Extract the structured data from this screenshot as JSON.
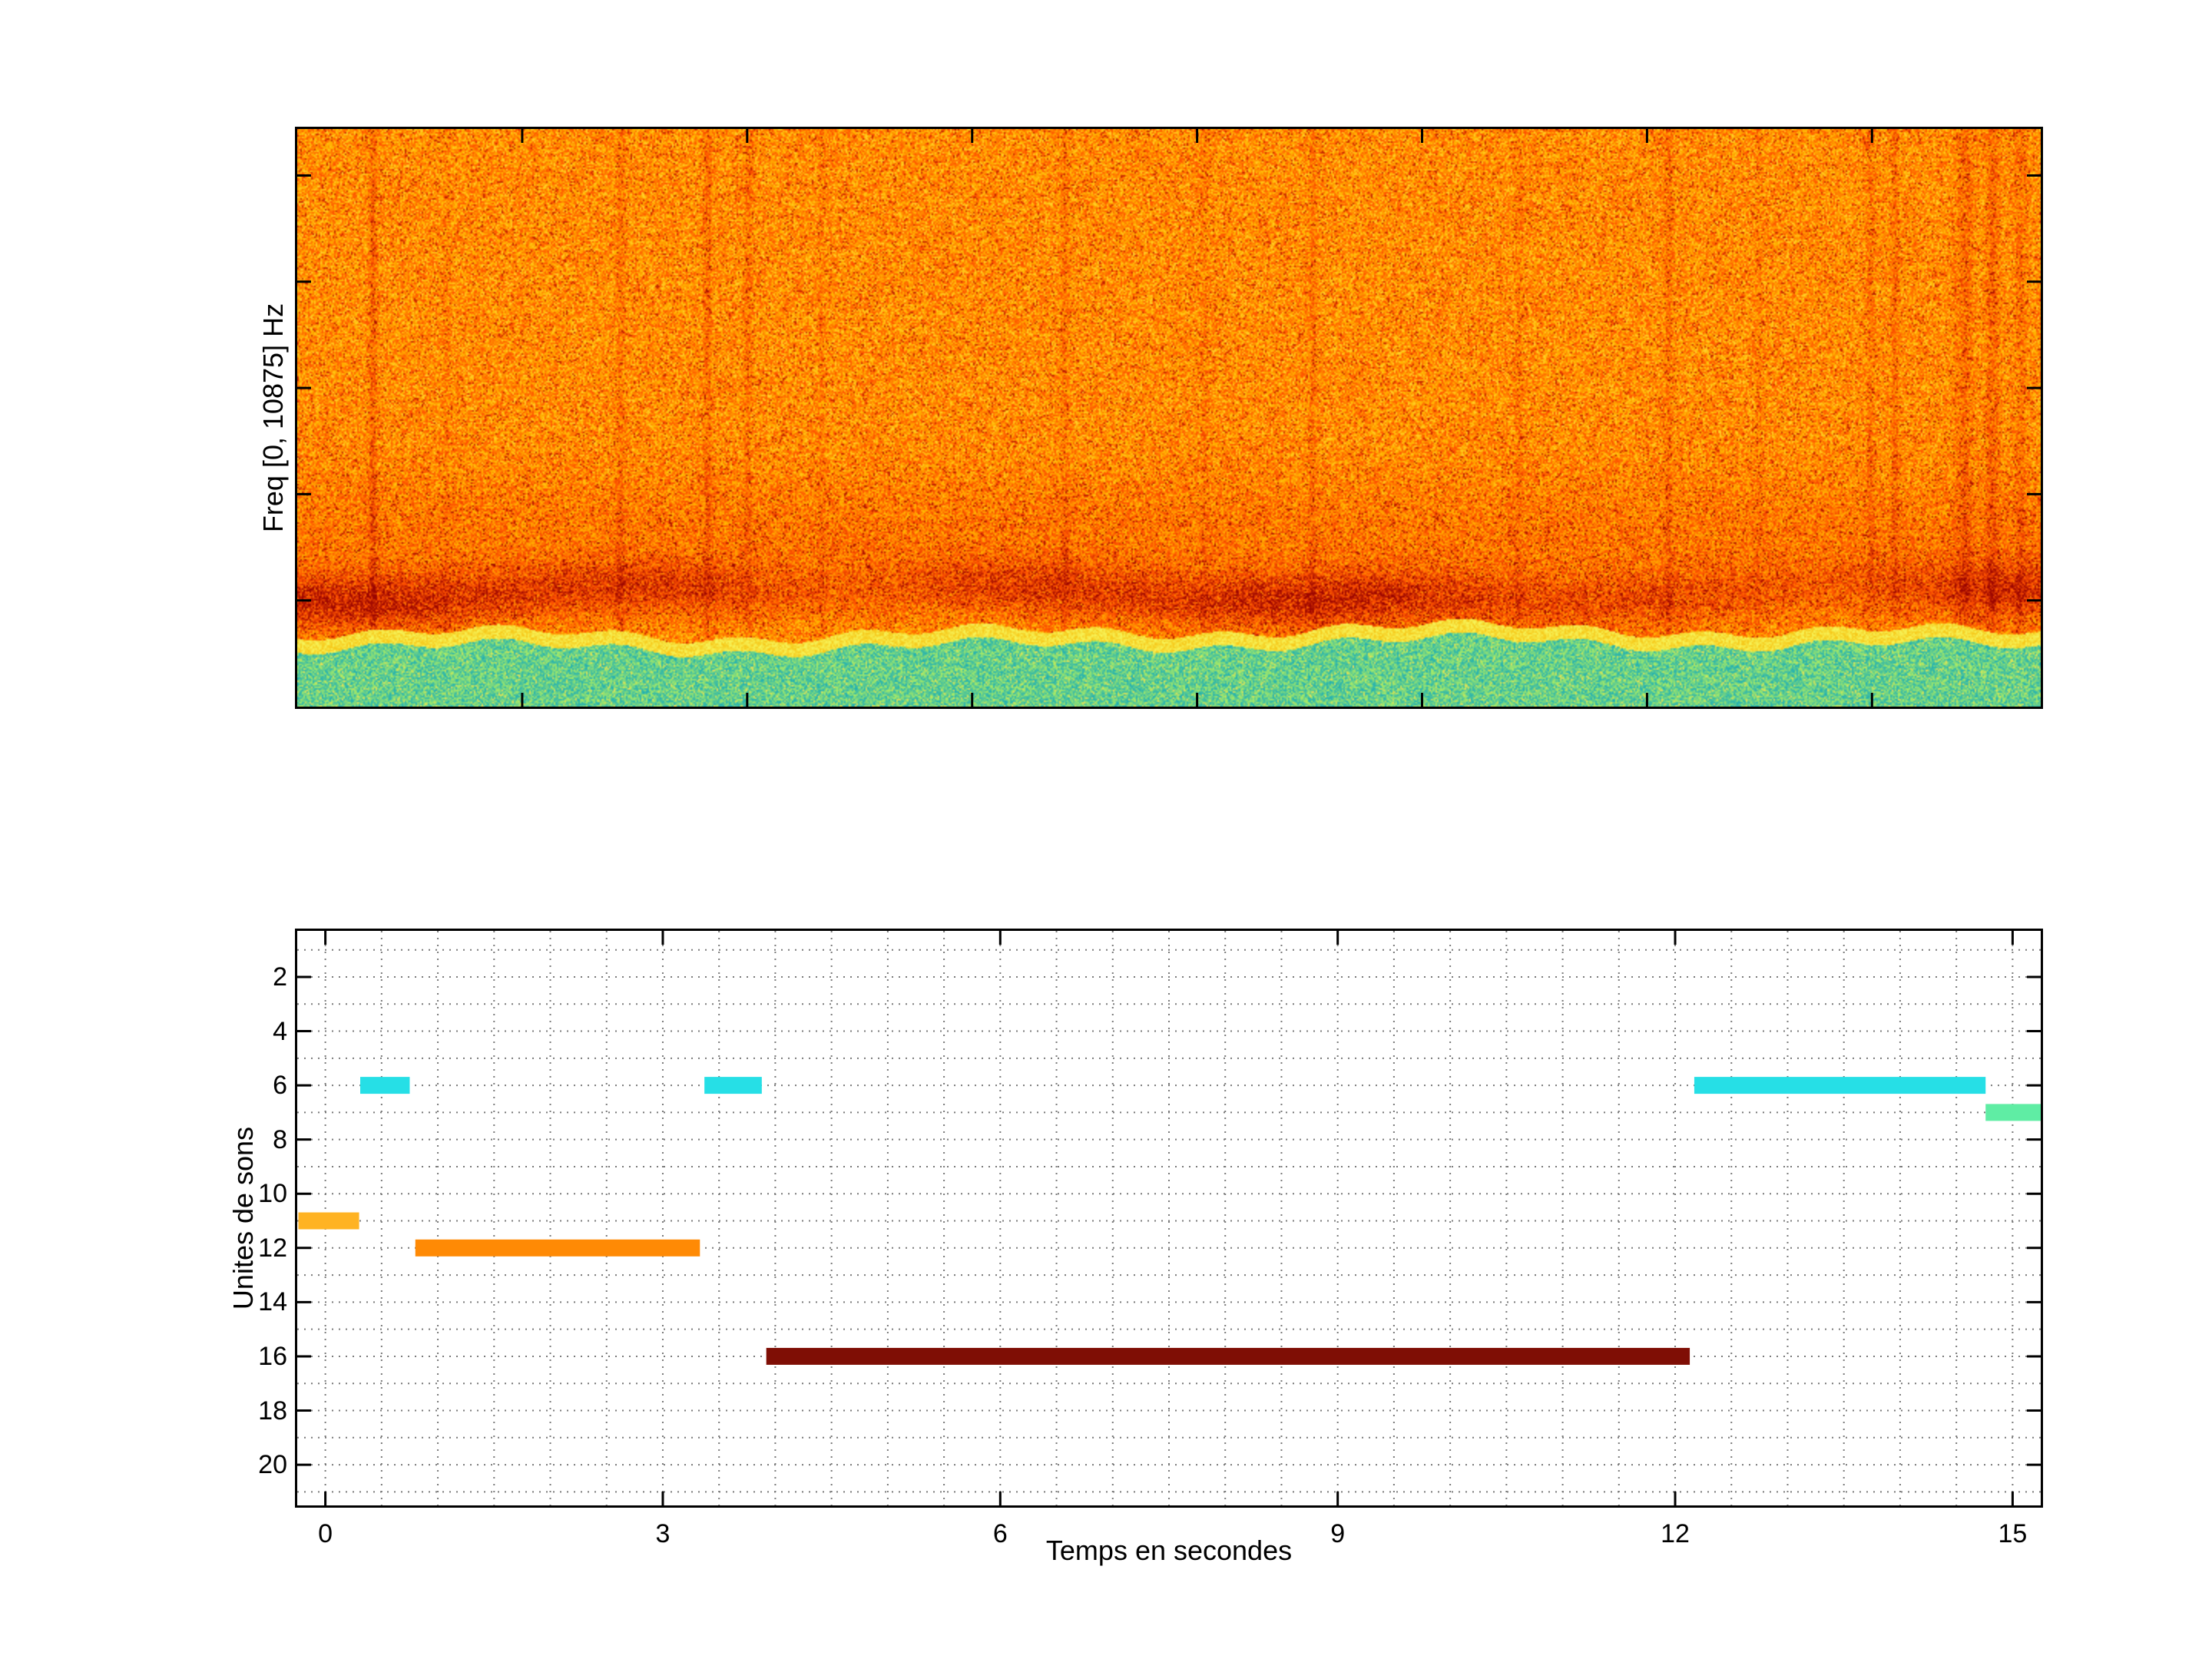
{
  "figure": {
    "background": "#FFFFFF"
  },
  "chart_data": [
    {
      "type": "heatmap",
      "kind": "spectrogram",
      "title": "",
      "xlabel": "",
      "ylabel": "Freq [0, 10875] Hz",
      "x_range_s": [
        0,
        15.5
      ],
      "y_range_hz": [
        0,
        10875
      ],
      "x_ticks_s": [
        2,
        4,
        6,
        8,
        10,
        12,
        14
      ],
      "y_ticks_hz": [
        2000,
        4000,
        6000,
        8000,
        10000
      ],
      "colormap": "jet",
      "description": "Broadband orange/yellow noise over most frequencies; strong dark-red energy band in the low frequencies (~20% above bottom), thin yellow transition line, green/cyan noise band filling the lowest ~10% of the frequency axis; sparse darker red vertical streaks.",
      "green_top_frac": 0.893,
      "transition_frac": 0.024,
      "red_band_center_frac": 0.805,
      "red_band_width_frac": 0.048,
      "red_band_amp": 0.4,
      "streaks": [
        {
          "x": 0.043,
          "amp": 0.28,
          "w": 0.0022
        },
        {
          "x": 0.085,
          "amp": 0.1,
          "w": 0.002
        },
        {
          "x": 0.185,
          "amp": 0.16,
          "w": 0.0025
        },
        {
          "x": 0.235,
          "amp": 0.22,
          "w": 0.0022
        },
        {
          "x": 0.258,
          "amp": 0.18,
          "w": 0.002
        },
        {
          "x": 0.3,
          "amp": 0.1,
          "w": 0.002
        },
        {
          "x": 0.44,
          "amp": 0.14,
          "w": 0.0028
        },
        {
          "x": 0.52,
          "amp": 0.12,
          "w": 0.0022
        },
        {
          "x": 0.582,
          "amp": 0.16,
          "w": 0.0022
        },
        {
          "x": 0.7,
          "amp": 0.12,
          "w": 0.0025
        },
        {
          "x": 0.786,
          "amp": 0.18,
          "w": 0.0022
        },
        {
          "x": 0.838,
          "amp": 0.1,
          "w": 0.002
        },
        {
          "x": 0.902,
          "amp": 0.16,
          "w": 0.0022
        },
        {
          "x": 0.916,
          "amp": 0.2,
          "w": 0.002
        },
        {
          "x": 0.956,
          "amp": 0.22,
          "w": 0.0045
        },
        {
          "x": 0.972,
          "amp": 0.26,
          "w": 0.0035
        },
        {
          "x": 0.988,
          "amp": 0.18,
          "w": 0.003
        }
      ]
    },
    {
      "type": "bar",
      "kind": "time-segments",
      "title": "",
      "xlabel": "Temps en secondes",
      "ylabel": "Unites de sons",
      "x_range": [
        -0.25,
        15.25
      ],
      "y_range": [
        0.3,
        21.5
      ],
      "y_axis_reversed": true,
      "x_ticks": [
        0,
        3,
        6,
        9,
        12,
        15
      ],
      "y_ticks": [
        2,
        4,
        6,
        8,
        10,
        12,
        14,
        16,
        18,
        20
      ],
      "grid": {
        "style": "dotted",
        "color": "#7a7a7a",
        "x_step": 0.5,
        "y_step": 1
      },
      "segment_thickness_units": 0.62,
      "segments": [
        {
          "unit": 11,
          "start": -0.24,
          "end": 0.3,
          "color": "#FFB323"
        },
        {
          "unit": 6,
          "start": 0.31,
          "end": 0.75,
          "color": "#26DFE6"
        },
        {
          "unit": 12,
          "start": 0.8,
          "end": 3.33,
          "color": "#FF8A05"
        },
        {
          "unit": 6,
          "start": 3.37,
          "end": 3.88,
          "color": "#26DFE6"
        },
        {
          "unit": 16,
          "start": 3.92,
          "end": 12.13,
          "color": "#7F0E05"
        },
        {
          "unit": 6,
          "start": 12.17,
          "end": 14.76,
          "color": "#26DFE6"
        },
        {
          "unit": 7,
          "start": 14.76,
          "end": 15.25,
          "color": "#5FEDA4"
        }
      ]
    }
  ]
}
